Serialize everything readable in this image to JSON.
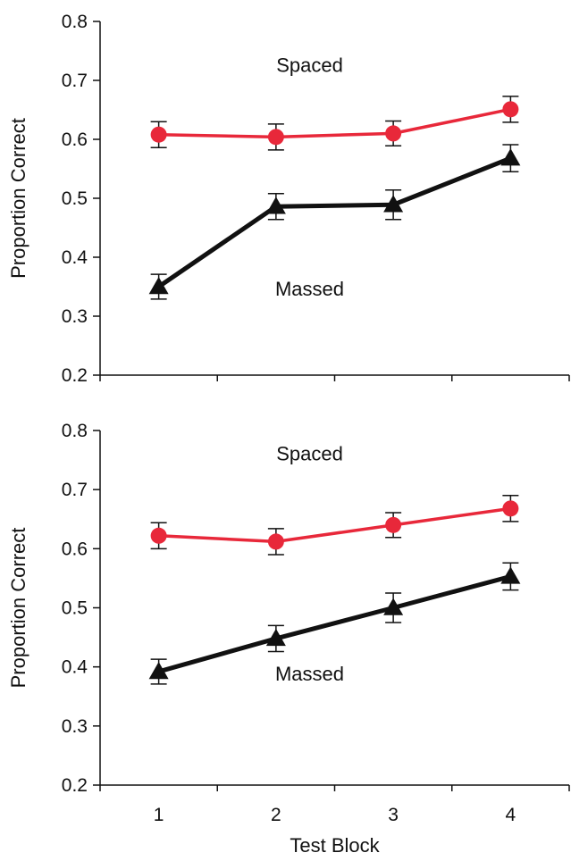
{
  "chart_data": [
    {
      "type": "line",
      "xlabel": "",
      "ylabel": "Proportion Correct",
      "ylim": [
        0.2,
        0.8
      ],
      "yticks": [
        "0.2",
        "0.3",
        "0.4",
        "0.5",
        "0.6",
        "0.7",
        "0.8"
      ],
      "categories": [
        "1",
        "2",
        "3",
        "4"
      ],
      "show_x_tick_labels": false,
      "series": [
        {
          "name": "Spaced",
          "color": "#e8283a",
          "marker": "circle",
          "values": [
            0.608,
            0.604,
            0.61,
            0.651
          ],
          "errors": [
            0.022,
            0.022,
            0.021,
            0.022
          ]
        },
        {
          "name": "Massed",
          "color": "#111111",
          "marker": "triangle",
          "values": [
            0.35,
            0.486,
            0.489,
            0.568
          ],
          "errors": [
            0.021,
            0.022,
            0.025,
            0.023
          ]
        }
      ]
    },
    {
      "type": "line",
      "xlabel": "Test Block",
      "ylabel": "Proportion Correct",
      "ylim": [
        0.2,
        0.8
      ],
      "yticks": [
        "0.2",
        "0.3",
        "0.4",
        "0.5",
        "0.6",
        "0.7",
        "0.8"
      ],
      "categories": [
        "1",
        "2",
        "3",
        "4"
      ],
      "show_x_tick_labels": true,
      "series": [
        {
          "name": "Spaced",
          "color": "#e8283a",
          "marker": "circle",
          "values": [
            0.622,
            0.612,
            0.64,
            0.668
          ],
          "errors": [
            0.022,
            0.022,
            0.021,
            0.022
          ]
        },
        {
          "name": "Massed",
          "color": "#111111",
          "marker": "triangle",
          "values": [
            0.392,
            0.448,
            0.5,
            0.553
          ],
          "errors": [
            0.021,
            0.022,
            0.025,
            0.023
          ]
        }
      ]
    }
  ]
}
